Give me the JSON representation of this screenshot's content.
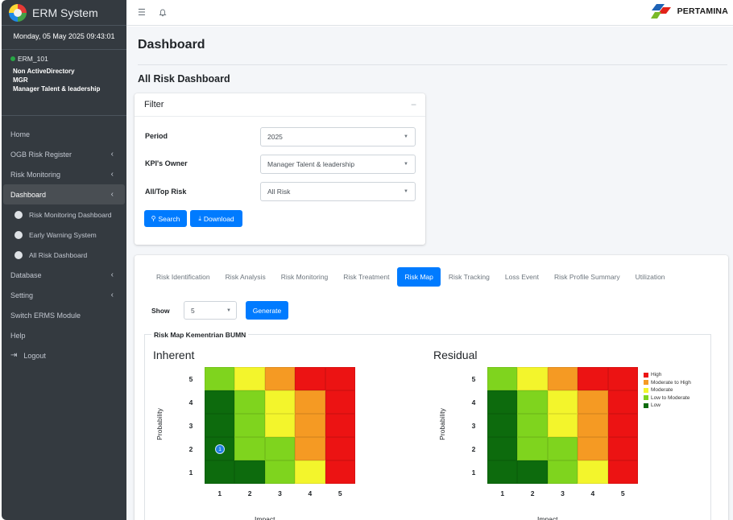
{
  "sidebar": {
    "app_title": "ERM System",
    "datetime": "Monday, 05 May 2025 09:43:01",
    "user": {
      "id": "ERM_101",
      "lines": [
        "Non ActiveDirectory",
        "MGR",
        "Manager Talent & leadership"
      ]
    },
    "nav": {
      "home": "Home",
      "ogb": "OGB Risk Register",
      "risk_monitoring": "Risk Monitoring",
      "dashboard": "Dashboard",
      "sub_risk_monitoring_dashboard": "Risk Monitoring Dashboard",
      "sub_early_warning": "Early Warning System",
      "sub_all_risk": "All Risk Dashboard",
      "database": "Database",
      "setting": "Setting",
      "switch": "Switch ERMS Module",
      "help": "Help",
      "logout": "Logout"
    }
  },
  "topbar": {
    "brand": "PERTAMINA"
  },
  "main": {
    "page_title": "Dashboard",
    "section_title": "All Risk Dashboard",
    "filter": {
      "title": "Filter",
      "period_label": "Period",
      "period_value": "2025",
      "owner_label": "KPI's Owner",
      "owner_value": "Manager Talent & leadership",
      "risk_label": "All/Top Risk",
      "risk_value": "All Risk",
      "search_label": "Search",
      "download_label": "Download"
    },
    "tabs": [
      "Risk Identification",
      "Risk Analysis",
      "Risk Monitoring",
      "Risk Treatment",
      "Risk Map",
      "Risk Tracking",
      "Loss Event",
      "Risk Profile Summary",
      "Utilization"
    ],
    "active_tab": "Risk Map",
    "show_label": "Show",
    "show_value": "5",
    "generate_label": "Generate",
    "map_section_title": "Risk Map Kementrian BUMN"
  },
  "risk_maps": {
    "inherent_title": "Inherent",
    "residual_title": "Residual",
    "ylabel": "Probability",
    "xlabel": "Impact",
    "ticks": [
      "1",
      "2",
      "3",
      "4",
      "5"
    ],
    "inherent_marker": {
      "probability": 2,
      "impact": 1,
      "count": "1"
    },
    "legend": [
      "High",
      "Moderate to High",
      "Moderate",
      "Low to Moderate",
      "Low"
    ],
    "colors": {
      "high": "#ec1313",
      "moderate_to_high": "#f59a23",
      "moderate": "#f3f52c",
      "low_to_moderate": "#7fd41e",
      "low": "#0d6b0d"
    }
  }
}
